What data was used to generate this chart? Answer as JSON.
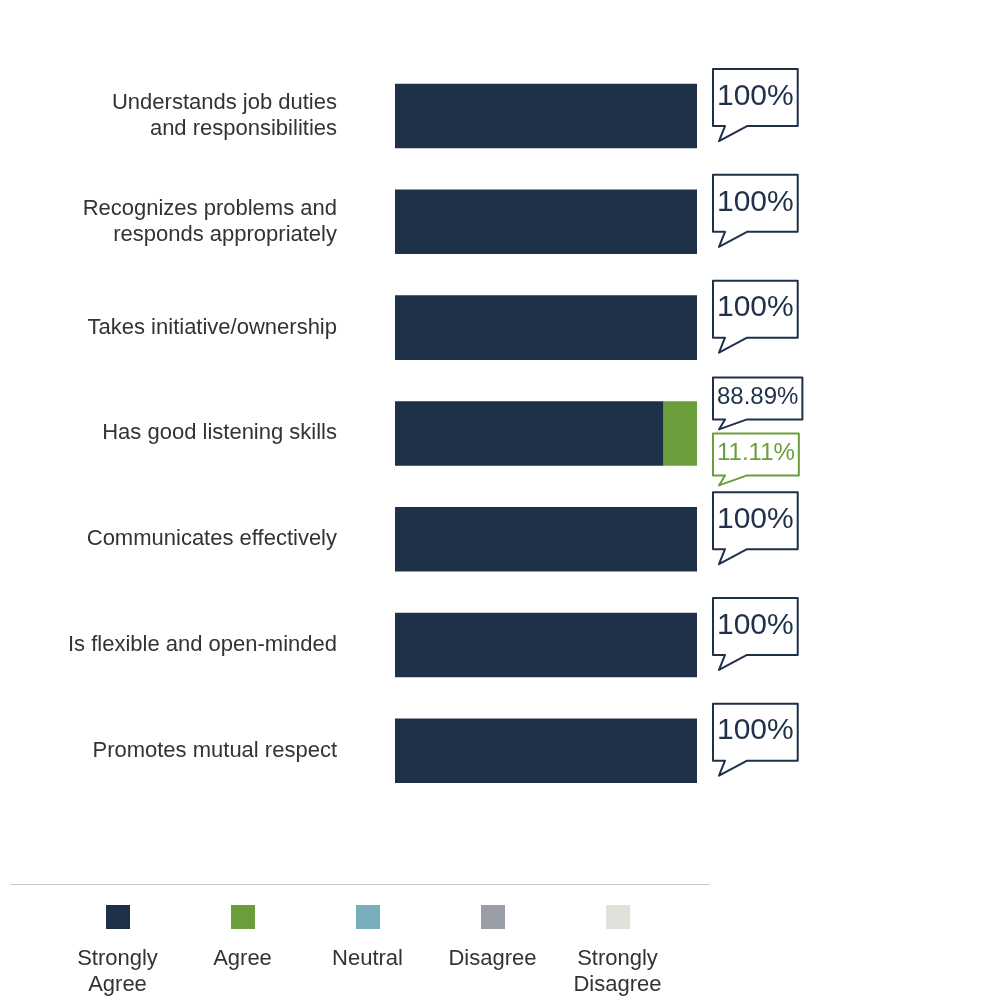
{
  "chart_data": {
    "type": "bar",
    "orientation": "horizontal",
    "stacked": true,
    "categories": [
      "Understands job duties and responsibilities",
      "Recognizes problems and responds appropriately",
      "Takes initiative/ownership",
      "Has good listening skills",
      "Communicates effectively",
      "Is flexible and open-minded",
      "Promotes mutual respect"
    ],
    "xlim": [
      0,
      100
    ],
    "tick_labels": "y",
    "legend": "bottom",
    "series": [
      {
        "name": "Strongly Agree",
        "color": "#1f3049",
        "values": [
          100,
          100,
          100,
          88.89,
          100,
          100,
          100
        ],
        "value_labels": [
          "100%",
          "100%",
          "100%",
          "88.89%",
          "100%",
          "100%",
          "100%"
        ]
      },
      {
        "name": "Agree",
        "color": "#6a9e3b",
        "values": [
          0,
          0,
          0,
          11.11,
          0,
          0,
          0
        ],
        "value_labels": [
          null,
          null,
          null,
          "11.11%",
          null,
          null,
          null
        ]
      },
      {
        "name": "Neutral",
        "color": "#7aadbb",
        "values": [
          0,
          0,
          0,
          0,
          0,
          0,
          0
        ]
      },
      {
        "name": "Disagree",
        "color": "#9a9ea8",
        "values": [
          0,
          0,
          0,
          0,
          0,
          0,
          0
        ]
      },
      {
        "name": "Strongly Disagree",
        "color": "#e2e0da",
        "values": [
          0,
          0,
          0,
          0,
          0,
          0,
          0
        ]
      }
    ]
  }
}
